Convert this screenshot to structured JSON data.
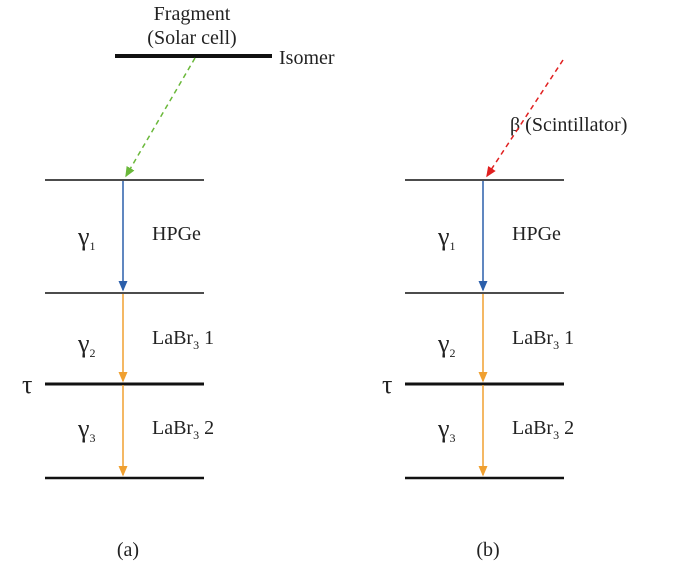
{
  "panels": [
    {
      "source": {
        "lines": [
          "Fragment",
          "(Solar cell)"
        ],
        "level": "Isomer"
      },
      "transitions": [
        {
          "symbol": "γ",
          "sub": "1",
          "detector": {
            "text": "HPGe"
          }
        },
        {
          "symbol": "γ",
          "sub": "2",
          "detector": {
            "text": "LaBr",
            "sub": "3",
            "suffix": " 1"
          }
        },
        {
          "symbol": "γ",
          "sub": "3",
          "detector": {
            "text": "LaBr",
            "sub": "3",
            "suffix": " 2"
          }
        }
      ],
      "tau": "τ",
      "label": "(a)"
    },
    {
      "source": {
        "lines": [
          "β (Scintillator)"
        ]
      },
      "transitions": [
        {
          "symbol": "γ",
          "sub": "1",
          "detector": {
            "text": "HPGe"
          }
        },
        {
          "symbol": "γ",
          "sub": "2",
          "detector": {
            "text": "LaBr",
            "sub": "3",
            "suffix": " 1"
          }
        },
        {
          "symbol": "γ",
          "sub": "3",
          "detector": {
            "text": "LaBr",
            "sub": "3",
            "suffix": " 2"
          }
        }
      ],
      "tau": "τ",
      "label": "(b)"
    }
  ]
}
